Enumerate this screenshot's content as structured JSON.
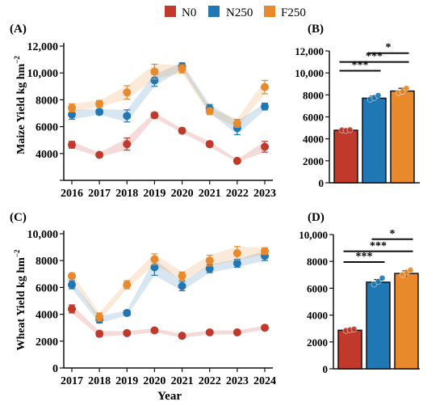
{
  "legend": {
    "items": [
      {
        "label": "N0",
        "color": "#C0392B"
      },
      {
        "label": "N250",
        "color": "#1F77B4"
      },
      {
        "label": "F250",
        "color": "#E8892B"
      }
    ]
  },
  "chart_data": [
    {
      "panel": "(A)",
      "type": "line",
      "ylabel": "Maize Yield kg hm",
      "ylabel_sup": "−2",
      "ylim": [
        2000,
        12000
      ],
      "yticks": [
        2000,
        4000,
        6000,
        8000,
        10000,
        12000
      ],
      "ytick_labels": [
        "",
        "4000",
        "6000",
        "8000",
        "10,000",
        "12,000"
      ],
      "x": [
        "2016",
        "2017",
        "2018",
        "2019",
        "2020",
        "2021",
        "2022",
        "2023"
      ],
      "series": [
        {
          "name": "N0",
          "color": "#C0392B",
          "values": [
            4650,
            3900,
            4700,
            6850,
            5700,
            4700,
            3450,
            4500
          ],
          "err": [
            250,
            150,
            450,
            200,
            150,
            200,
            100,
            400
          ]
        },
        {
          "name": "N250",
          "color": "#1F77B4",
          "values": [
            6900,
            7100,
            6800,
            9450,
            10500,
            7350,
            5900,
            7500
          ],
          "err": [
            350,
            200,
            450,
            450,
            250,
            300,
            500,
            250
          ]
        },
        {
          "name": "F250",
          "color": "#E8892B",
          "values": [
            7400,
            7700,
            8550,
            10100,
            10300,
            7150,
            6250,
            8950
          ],
          "err": [
            300,
            250,
            500,
            550,
            300,
            250,
            300,
            500
          ]
        }
      ]
    },
    {
      "panel": "(B)",
      "type": "bar",
      "ylim": [
        0,
        12000
      ],
      "yticks": [
        0,
        2000,
        4000,
        6000,
        8000,
        10000,
        12000
      ],
      "ytick_labels": [
        "0",
        "2000",
        "4000",
        "6000",
        "8000",
        "10,000",
        "12,000"
      ],
      "categories": [
        "N0",
        "N250",
        "F250"
      ],
      "colors": [
        "#C0392B",
        "#1F77B4",
        "#E8892B"
      ],
      "values": [
        4780,
        7700,
        8350
      ],
      "err": [
        80,
        200,
        250
      ],
      "points": [
        [
          4800,
          4750,
          4820
        ],
        [
          7600,
          7750,
          7950
        ],
        [
          8200,
          8300,
          8600
        ]
      ],
      "brackets": [
        {
          "from": 0,
          "to": 1,
          "label": "***",
          "y": 10200
        },
        {
          "from": 0,
          "to": 2,
          "label": "***",
          "y": 11000
        },
        {
          "from": 1,
          "to": 2,
          "label": "*",
          "y": 11800
        }
      ]
    },
    {
      "panel": "(C)",
      "type": "line",
      "ylabel": "Wheat Yield  kg hm",
      "ylabel_sup": "−2",
      "xlabel": "Year",
      "ylim": [
        0,
        10000
      ],
      "yticks": [
        0,
        2000,
        4000,
        6000,
        8000,
        10000
      ],
      "ytick_labels": [
        "0",
        "2000",
        "4000",
        "6000",
        "8000",
        "10,000"
      ],
      "x": [
        "2017",
        "2018",
        "2019",
        "2020",
        "2021",
        "2022",
        "2023",
        "2024"
      ],
      "series": [
        {
          "name": "N0",
          "color": "#C0392B",
          "values": [
            4400,
            2550,
            2600,
            2800,
            2400,
            2650,
            2650,
            3000
          ],
          "err": [
            300,
            200,
            150,
            150,
            150,
            150,
            150,
            150
          ]
        },
        {
          "name": "N250",
          "color": "#1F77B4",
          "values": [
            6200,
            3600,
            4100,
            7500,
            6100,
            7400,
            7800,
            8350
          ],
          "err": [
            300,
            250,
            200,
            600,
            350,
            300,
            300,
            350
          ]
        },
        {
          "name": "F250",
          "color": "#E8892B",
          "values": [
            6850,
            3800,
            6200,
            8100,
            6850,
            8000,
            8550,
            8700
          ],
          "err": [
            200,
            300,
            300,
            400,
            300,
            400,
            500,
            250
          ]
        }
      ]
    },
    {
      "panel": "(D)",
      "type": "bar",
      "ylim": [
        0,
        10000
      ],
      "yticks": [
        0,
        2000,
        4000,
        6000,
        8000,
        10000
      ],
      "ytick_labels": [
        "0",
        "2000",
        "4000",
        "6000",
        "8000",
        "10,000"
      ],
      "categories": [
        "N0",
        "N250",
        "F250"
      ],
      "colors": [
        "#C0392B",
        "#1F77B4",
        "#E8892B"
      ],
      "values": [
        2870,
        6450,
        7100
      ],
      "err": [
        80,
        200,
        200
      ],
      "points": [
        [
          2850,
          2900,
          2950
        ],
        [
          6300,
          6500,
          6750
        ],
        [
          7000,
          7200,
          7350
        ]
      ],
      "brackets": [
        {
          "from": 0,
          "to": 1,
          "label": "***",
          "y": 7950
        },
        {
          "from": 0,
          "to": 2,
          "label": "***",
          "y": 8750
        },
        {
          "from": 1,
          "to": 2,
          "label": "*",
          "y": 9650
        }
      ]
    }
  ]
}
